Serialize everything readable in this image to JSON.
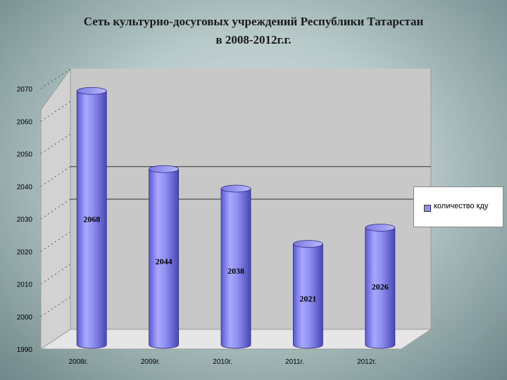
{
  "chart_data": {
    "type": "bar",
    "style": "3d-cylinder",
    "title": "Сеть культурно-досуговых учреждений Республики Татарстан",
    "subtitle": "в 2008-2012г.г.",
    "categories": [
      "2008г.",
      "2009г.",
      "2010г.",
      "2011г.",
      "2012г."
    ],
    "series": [
      {
        "name": "количество кду",
        "values": [
          2068,
          2044,
          2038,
          2021,
          2026
        ],
        "color": "#8f8ff0"
      }
    ],
    "data_labels": [
      "2068",
      "2044",
      "2038",
      "2021",
      "2026"
    ],
    "y_ticks": [
      "1990",
      "2000",
      "2010",
      "2020",
      "2030",
      "2040",
      "2050",
      "2060",
      "2070"
    ],
    "ylim": [
      1990,
      2070
    ],
    "xlabel": "",
    "ylabel": "",
    "legend_position": "right",
    "grid": true
  }
}
